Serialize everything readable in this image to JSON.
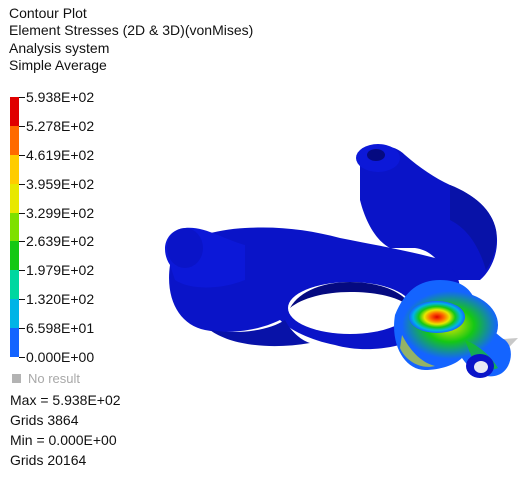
{
  "header": {
    "line1": "Contour Plot",
    "line2": "Element Stresses (2D & 3D)(vonMises)",
    "line3": "Analysis system",
    "line4": "Simple Average"
  },
  "legend": {
    "labels": [
      "5.938E+02",
      "5.278E+02",
      "4.619E+02",
      "3.959E+02",
      "3.299E+02",
      "2.639E+02",
      "1.979E+02",
      "1.320E+02",
      "6.598E+01",
      "0.000E+00"
    ],
    "colors": [
      "#e00000",
      "#ff6a00",
      "#ffcc00",
      "#e8e800",
      "#7ee000",
      "#14c814",
      "#00d7a0",
      "#00b4e6",
      "#1464ff",
      "#0a14c8"
    ],
    "no_result": "No result",
    "no_result_color": "#b3b3b3"
  },
  "stats": {
    "max": "Max = 5.938E+02",
    "max_grid": "Grids 3864",
    "min": "Min = 0.000E+00",
    "min_grid": "Grids 20164"
  },
  "model": {
    "body_color": "#0a14c8",
    "shadow_color": "#050a80"
  }
}
